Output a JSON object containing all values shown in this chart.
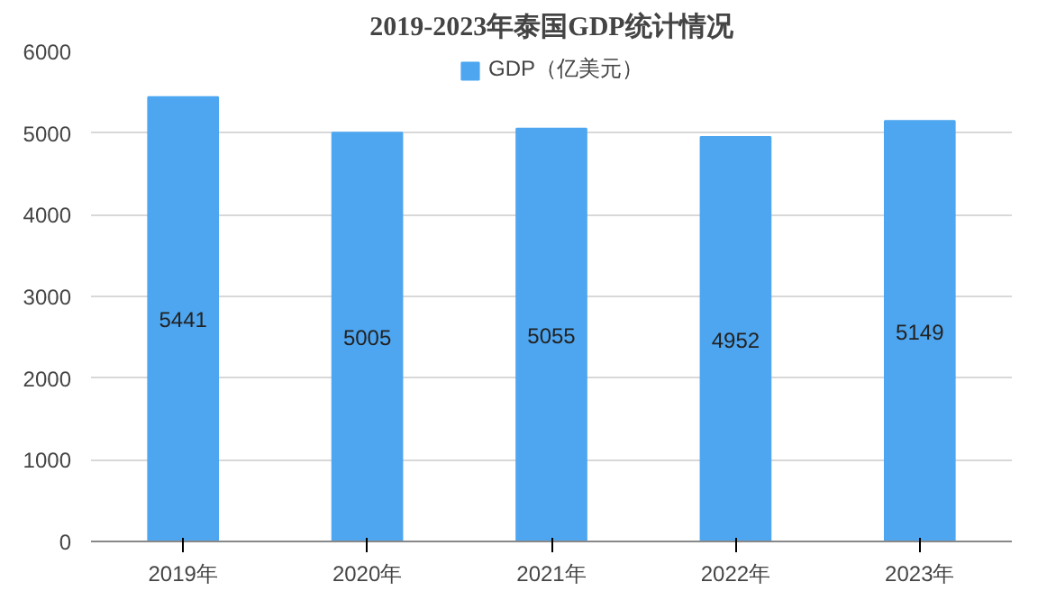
{
  "chart_data": {
    "type": "bar",
    "title": "2019-2023年泰国GDP统计情况",
    "categories": [
      "2019年",
      "2020年",
      "2021年",
      "2022年",
      "2023年"
    ],
    "series": [
      {
        "name": "GDP（亿美元）",
        "color": "#4ea6f0",
        "values": [
          5441,
          5005,
          5055,
          4952,
          5149
        ]
      }
    ],
    "ylim": [
      0,
      6000
    ],
    "yticks": [
      0,
      1000,
      2000,
      3000,
      4000,
      5000,
      6000
    ],
    "grid": "y",
    "legend": "top",
    "data_labels": true
  }
}
